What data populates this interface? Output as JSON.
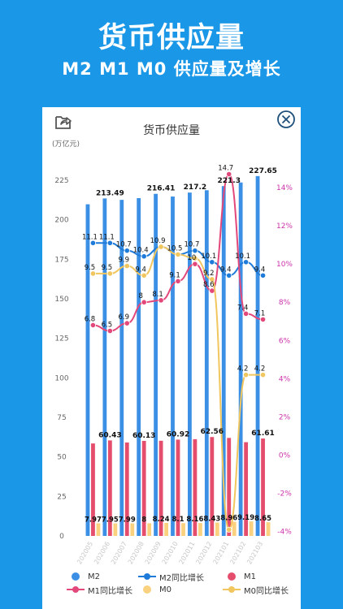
{
  "header": {
    "title": "货币供应量",
    "subtitle": "M2 M1 M0 供应量及增长"
  },
  "card": {
    "chart_title": "货币供应量",
    "share_icon": "export-icon",
    "close_icon": "close-circle-icon"
  },
  "colors": {
    "background": "#1a97e6",
    "m2": "#3b8fe5",
    "m2_growth": "#1f7bd9",
    "m1": "#e54d6d",
    "m1_growth": "#e2487a",
    "m0": "#f9d17f",
    "m0_growth": "#f1c65e",
    "right_axis": "#cc33aa"
  },
  "chart_data": {
    "type": "bar",
    "title": "货币供应量",
    "ylabel": "(万亿元)",
    "ylim": [
      0,
      235
    ],
    "y2lim": [
      -4.5,
      15
    ],
    "left_ticks": [
      0,
      25,
      50,
      75,
      100,
      125,
      150,
      175,
      200,
      225
    ],
    "right_ticks": [
      "-4%",
      "-2%",
      "0%",
      "2%",
      "4%",
      "6%",
      "8%",
      "10%",
      "12%",
      "14%"
    ],
    "categories": [
      "202005",
      "202006",
      "202007",
      "202008",
      "202009",
      "202010",
      "202011",
      "202012",
      "202101",
      "202102",
      "202103"
    ],
    "series": [
      {
        "name": "M2",
        "kind": "bar",
        "axis": "left",
        "values": [
          209.8,
          213.49,
          212.6,
          213.7,
          216.41,
          214.7,
          217.2,
          218.7,
          221.3,
          223.6,
          227.65
        ],
        "labels": [
          "",
          "213.49",
          "",
          "",
          "216.41",
          "",
          "217.2",
          "",
          "221.3",
          "",
          "227.65"
        ]
      },
      {
        "name": "M1",
        "kind": "bar",
        "axis": "left",
        "values": [
          58.5,
          60.43,
          59.1,
          60.13,
          60.2,
          60.92,
          61.2,
          62.56,
          62.0,
          59.3,
          61.61
        ],
        "labels": [
          "",
          "60.43",
          "",
          "60.13",
          "",
          "60.92",
          "",
          "62.56",
          "",
          "",
          "61.61"
        ]
      },
      {
        "name": "M0",
        "kind": "bar",
        "axis": "left",
        "values": [
          7.97,
          7.95,
          7.99,
          8,
          8.24,
          8.1,
          8.16,
          8.43,
          8.96,
          9.19,
          8.65
        ],
        "labels": [
          "7.97",
          "7.95",
          "7.99",
          "8",
          "8.24",
          "8.1",
          "8.16",
          "8.43",
          "8.96",
          "9.19",
          "8.65"
        ]
      },
      {
        "name": "M2同比增长",
        "kind": "line",
        "axis": "right",
        "values": [
          11.1,
          11.1,
          10.7,
          10.4,
          10.9,
          10.5,
          10.7,
          10.1,
          9.4,
          10.1,
          9.4
        ],
        "labels": [
          "11.1",
          "11.1",
          "10.7",
          "10.4",
          "10.9",
          "10.5",
          "10.7",
          "10.1",
          "9.4",
          "10.1",
          "9.4"
        ]
      },
      {
        "name": "M1同比增长",
        "kind": "line",
        "axis": "right",
        "values": [
          6.8,
          6.5,
          6.9,
          8,
          8.1,
          9.1,
          10,
          8.6,
          14.7,
          7.4,
          7.1
        ],
        "labels": [
          "6.8",
          "6.5",
          "6.9",
          "8",
          "8.1",
          "9.1",
          "10",
          "8.6",
          "14.7",
          "7.4",
          "7.1"
        ]
      },
      {
        "name": "M0同比增长",
        "kind": "line",
        "axis": "right",
        "values": [
          9.5,
          9.5,
          9.9,
          9.4,
          10.9,
          10.5,
          10.3,
          9.2,
          -3.9,
          4.2,
          4.2
        ],
        "labels": [
          "9.5",
          "9.5",
          "9.9",
          "9.4",
          "",
          "",
          "",
          "9.2",
          "",
          "4.2",
          "4.2"
        ]
      }
    ],
    "legend": [
      "M2",
      "M2同比增长",
      "M1",
      "M1同比增长",
      "M0",
      "M0同比增长"
    ],
    "legend_position": "bottom",
    "grid": false
  }
}
